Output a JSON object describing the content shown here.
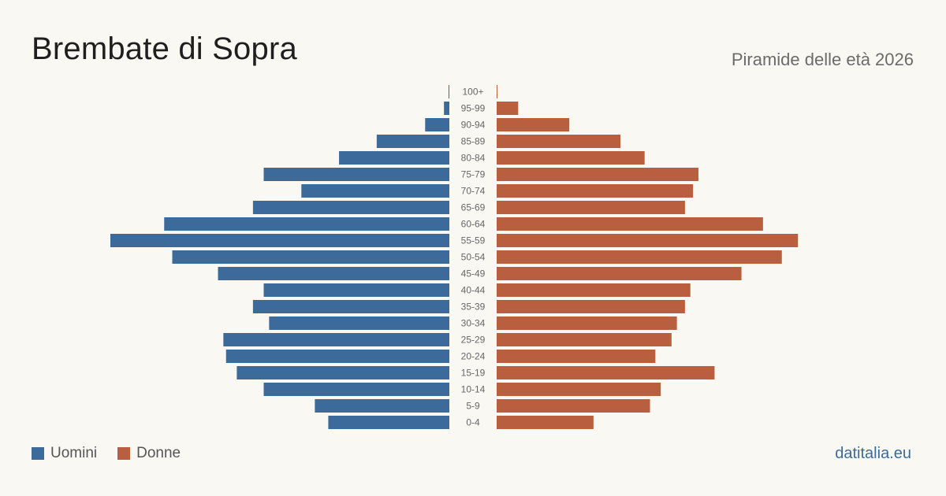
{
  "header": {
    "title": "Brembate di Sopra",
    "subtitle": "Piramide delle età 2026"
  },
  "legend": {
    "male_label": "Uomini",
    "female_label": "Donne"
  },
  "source": "datitalia.eu",
  "colors": {
    "male": "#3b6a9b",
    "female": "#b95e3e",
    "background": "#faf8f3",
    "age_label": "#666666",
    "source": "#3b6a9b"
  },
  "chart_data": {
    "type": "bar",
    "orientation": "horizontal-pyramid",
    "categories": [
      "100+",
      "95-99",
      "90-94",
      "85-89",
      "80-84",
      "75-79",
      "70-74",
      "65-69",
      "60-64",
      "55-59",
      "50-54",
      "45-49",
      "40-44",
      "35-39",
      "30-34",
      "25-29",
      "20-24",
      "15-19",
      "10-14",
      "5-9",
      "0-4"
    ],
    "series": [
      {
        "name": "Uomini",
        "values": [
          0.3,
          2,
          9,
          27,
          41,
          69,
          55,
          73,
          106,
          126,
          103,
          86,
          69,
          73,
          67,
          84,
          83,
          79,
          69,
          50,
          45
        ]
      },
      {
        "name": "Donne",
        "values": [
          0.3,
          8,
          27,
          46,
          55,
          75,
          73,
          70,
          99,
          112,
          106,
          91,
          72,
          70,
          67,
          65,
          59,
          81,
          61,
          57,
          36
        ]
      }
    ],
    "scale_max": 126,
    "legend_position": "bottom-left",
    "grid": false
  }
}
